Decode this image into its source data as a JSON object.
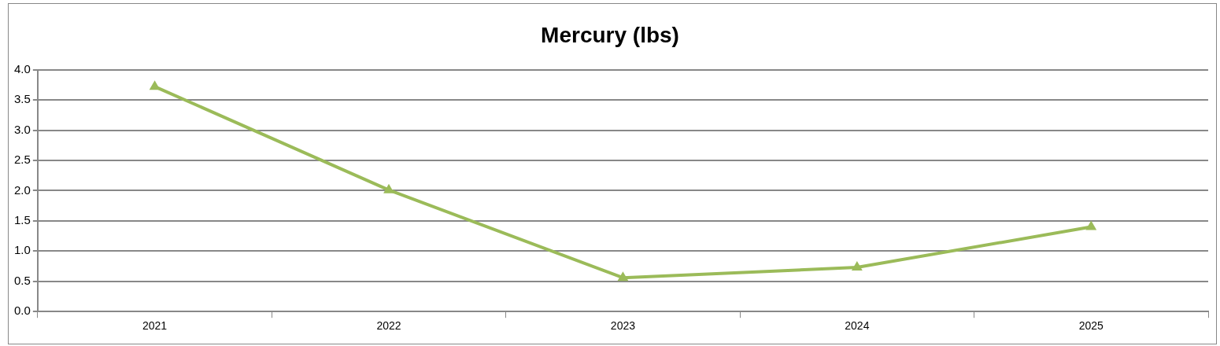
{
  "chart_data": {
    "type": "line",
    "title": "Mercury (lbs)",
    "categories": [
      "2021",
      "2022",
      "2023",
      "2024",
      "2025"
    ],
    "series": [
      {
        "color": "#9bbb59",
        "values": [
          3.72,
          2.01,
          0.56,
          0.73,
          1.4
        ]
      }
    ],
    "ylim": [
      0,
      4
    ],
    "yticks": [
      {
        "value": 0,
        "label": "0.0"
      },
      {
        "value": 0.5,
        "label": "0.5"
      },
      {
        "value": 1,
        "label": "1.0"
      },
      {
        "value": 1.5,
        "label": "1.5"
      },
      {
        "value": 2,
        "label": "2.0"
      },
      {
        "value": 2.5,
        "label": "2.5"
      },
      {
        "value": 3,
        "label": "3.0"
      },
      {
        "value": 3.5,
        "label": "3.5"
      },
      {
        "value": 4,
        "label": "4.0"
      }
    ],
    "grid": "y",
    "legend": false,
    "marker": "triangle",
    "line_style": "solid"
  }
}
